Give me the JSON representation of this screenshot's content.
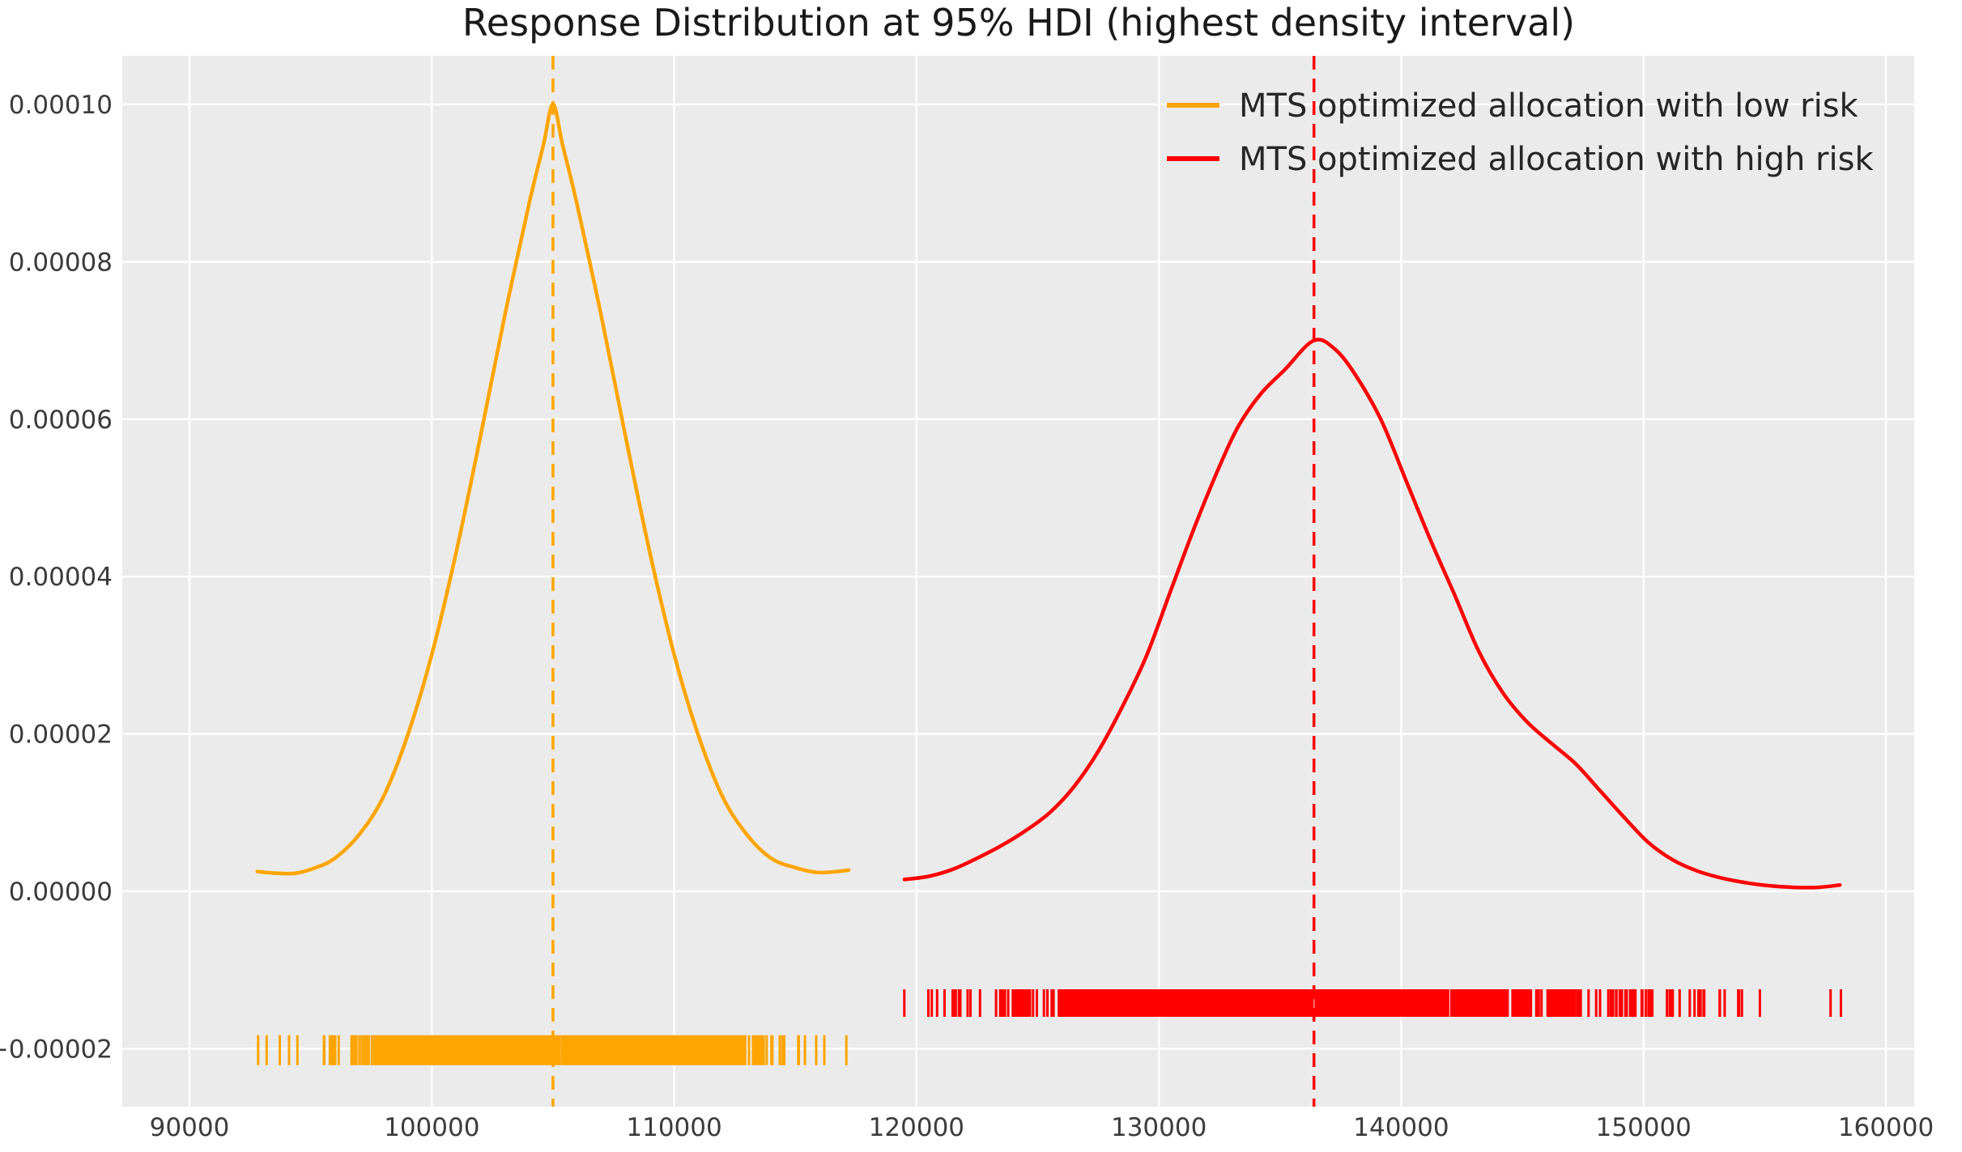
{
  "title": "Response Distribution at 95% HDI (highest density interval)",
  "colors": {
    "plot_background": "#EBEBEB",
    "grid": "#FFFFFF",
    "tick_text": "#3b3b3b",
    "title_text": "#1a1a1a",
    "low_risk": "#FFA500",
    "high_risk": "#FF0000"
  },
  "legend": {
    "position": "upper right",
    "entries": [
      {
        "label": "MTS optimized allocation with low risk",
        "color": "#FFA500"
      },
      {
        "label": "MTS optimized allocation with high risk",
        "color": "#FF0000"
      }
    ]
  },
  "chart_data": {
    "type": "line",
    "subtype": "kde-with-rug",
    "title": "Response Distribution at 95% HDI (highest density interval)",
    "xlabel": "",
    "ylabel": "",
    "grid": true,
    "legend_position": "upper right",
    "xlim": [
      87227,
      161169
    ],
    "ylim": [
      -2.737e-05,
      0.00010617
    ],
    "x_ticks": [
      90000,
      100000,
      110000,
      120000,
      130000,
      140000,
      150000,
      160000
    ],
    "x_tick_labels": [
      "90000",
      "100000",
      "110000",
      "120000",
      "130000",
      "140000",
      "150000",
      "160000"
    ],
    "y_ticks": [
      -2e-05,
      0.0,
      2e-05,
      4e-05,
      6e-05,
      8e-05,
      0.0001
    ],
    "y_tick_labels": [
      "−0.00002",
      "0.00000",
      "0.00002",
      "0.00004",
      "0.00006",
      "0.00008",
      "0.00010"
    ],
    "series": [
      {
        "name": "MTS optimized allocation with low risk",
        "color": "#FFA500",
        "peak": {
          "x": 105000,
          "density": 0.0001
        },
        "mean_line_x": 105000,
        "line_style": "solid",
        "mean_line_style": "dashed",
        "points": [
          [
            92800,
            2.5e-06
          ],
          [
            93600,
            2.3e-06
          ],
          [
            94400,
            2.3e-06
          ],
          [
            95200,
            3e-06
          ],
          [
            96000,
            4.2e-06
          ],
          [
            97000,
            7.2e-06
          ],
          [
            98000,
            1.2e-05
          ],
          [
            99000,
            1.98e-05
          ],
          [
            100000,
            3.01e-05
          ],
          [
            101000,
            4.3e-05
          ],
          [
            102000,
            5.77e-05
          ],
          [
            103000,
            7.3e-05
          ],
          [
            104000,
            8.72e-05
          ],
          [
            104600,
            9.48e-05
          ],
          [
            105000,
            0.0001
          ],
          [
            105400,
            9.48e-05
          ],
          [
            106000,
            8.72e-05
          ],
          [
            107000,
            7.3e-05
          ],
          [
            108000,
            5.77e-05
          ],
          [
            109000,
            4.3e-05
          ],
          [
            110000,
            3.01e-05
          ],
          [
            111000,
            1.98e-05
          ],
          [
            112000,
            1.2e-05
          ],
          [
            113000,
            7.2e-06
          ],
          [
            114000,
            4.2e-06
          ],
          [
            115000,
            3e-06
          ],
          [
            115900,
            2.4e-06
          ],
          [
            116700,
            2.5e-06
          ],
          [
            117200,
            2.7e-06
          ]
        ],
        "rug": {
          "center": -2.02e-05,
          "half_height": 1.9e-06,
          "mark_width": 3,
          "clusters": [
            [
              92820,
              92900,
              1
            ],
            [
              93170,
              93250,
              1
            ],
            [
              93660,
              93740,
              1
            ],
            [
              94060,
              94140,
              1
            ],
            [
              94420,
              94500,
              1
            ],
            [
              95300,
              96600,
              10
            ],
            [
              96600,
              97600,
              18
            ],
            [
              97600,
              112500,
              900
            ],
            [
              112500,
              113600,
              22
            ],
            [
              113600,
              114900,
              9
            ],
            [
              115100,
              115900,
              4
            ],
            [
              116180,
              116260,
              1
            ],
            [
              117100,
              117200,
              1
            ]
          ]
        }
      },
      {
        "name": "MTS optimized allocation with high risk",
        "color": "#FF0000",
        "peak": {
          "x": 136400,
          "density": 7e-05
        },
        "mean_line_x": 136400,
        "line_style": "solid",
        "mean_line_style": "dashed",
        "points": [
          [
            119500,
            1.5e-06
          ],
          [
            120500,
            1.9e-06
          ],
          [
            121500,
            2.8e-06
          ],
          [
            122500,
            4.2e-06
          ],
          [
            123500,
            5.8e-06
          ],
          [
            124500,
            7.7e-06
          ],
          [
            125500,
            1e-05
          ],
          [
            126500,
            1.33e-05
          ],
          [
            127500,
            1.78e-05
          ],
          [
            128500,
            2.35e-05
          ],
          [
            129500,
            3e-05
          ],
          [
            130500,
            3.83e-05
          ],
          [
            131500,
            4.65e-05
          ],
          [
            132500,
            5.4e-05
          ],
          [
            133300,
            5.92e-05
          ],
          [
            134200,
            6.32e-05
          ],
          [
            135200,
            6.63e-05
          ],
          [
            136400,
            7e-05
          ],
          [
            137300,
            6.88e-05
          ],
          [
            138200,
            6.52e-05
          ],
          [
            139200,
            5.97e-05
          ],
          [
            140200,
            5.22e-05
          ],
          [
            141200,
            4.47e-05
          ],
          [
            142200,
            3.77e-05
          ],
          [
            143200,
            3.05e-05
          ],
          [
            144200,
            2.52e-05
          ],
          [
            145200,
            2.15e-05
          ],
          [
            146200,
            1.88e-05
          ],
          [
            147200,
            1.62e-05
          ],
          [
            148200,
            1.28e-05
          ],
          [
            149200,
            9.4e-06
          ],
          [
            150200,
            6.2e-06
          ],
          [
            151200,
            4e-06
          ],
          [
            152200,
            2.6e-06
          ],
          [
            153200,
            1.7e-06
          ],
          [
            154200,
            1.1e-06
          ],
          [
            155200,
            7e-07
          ],
          [
            156200,
            5e-07
          ],
          [
            157200,
            5e-07
          ],
          [
            158100,
            8e-07
          ]
        ],
        "rug": {
          "center": -1.42e-05,
          "half_height": 1.75e-06,
          "mark_width": 3,
          "clusters": [
            [
              119480,
              119560,
              1
            ],
            [
              120300,
              121500,
              5
            ],
            [
              121500,
              123300,
              11
            ],
            [
              123300,
              125900,
              38
            ],
            [
              125900,
              143400,
              1050
            ],
            [
              143400,
              145400,
              55
            ],
            [
              145400,
              147500,
              38
            ],
            [
              147500,
              150300,
              26
            ],
            [
              150300,
              151500,
              7
            ],
            [
              151600,
              153400,
              9
            ],
            [
              153900,
              154200,
              3
            ],
            [
              154800,
              154900,
              1
            ],
            [
              157700,
              157780,
              1
            ],
            [
              158080,
              158160,
              1
            ]
          ]
        }
      }
    ]
  }
}
